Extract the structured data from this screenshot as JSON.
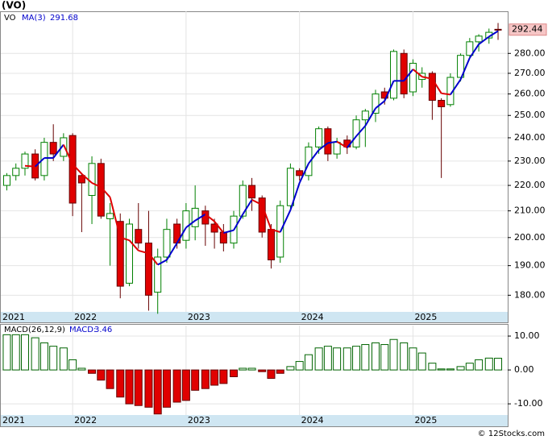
{
  "chart_data": [
    {
      "type": "candlestick",
      "title": "(VO)",
      "name": "VO",
      "log_scale": true,
      "grid": true,
      "up_color": "#008000",
      "down_color": "#e00000",
      "x": [
        2021.42,
        2021.5,
        2021.58,
        2021.67,
        2021.75,
        2021.83,
        2021.92,
        2022.0,
        2022.08,
        2022.17,
        2022.25,
        2022.33,
        2022.42,
        2022.5,
        2022.58,
        2022.67,
        2022.75,
        2022.83,
        2022.92,
        2023.0,
        2023.08,
        2023.17,
        2023.25,
        2023.33,
        2023.42,
        2023.5,
        2023.58,
        2023.67,
        2023.75,
        2023.83,
        2023.92,
        2024.0,
        2024.08,
        2024.17,
        2024.25,
        2024.33,
        2024.42,
        2024.5,
        2024.58,
        2024.67,
        2024.75,
        2024.83,
        2024.92,
        2025.0,
        2025.08,
        2025.17,
        2025.25,
        2025.33,
        2025.42,
        2025.5,
        2025.58,
        2025.67,
        2025.75
      ],
      "open": [
        220,
        224,
        227,
        233,
        224,
        238,
        232,
        241,
        224,
        216,
        229,
        207,
        206,
        184,
        203,
        198,
        181,
        193,
        205,
        199,
        204,
        210,
        205,
        202,
        198,
        208,
        220,
        215,
        203,
        193,
        212,
        226,
        224,
        236,
        244,
        233,
        239,
        236,
        248,
        251,
        261,
        258,
        280,
        261,
        267,
        270,
        257,
        255,
        268,
        279,
        286,
        288,
        292.6
      ],
      "high": [
        225,
        229,
        234,
        235,
        240,
        246,
        242,
        242,
        225,
        232,
        231,
        213,
        209,
        207,
        213,
        210,
        196,
        207,
        207,
        213,
        220,
        212,
        207,
        205,
        210,
        222,
        223,
        216,
        205,
        214,
        229,
        227,
        238,
        245,
        245,
        240,
        241,
        250,
        253,
        262,
        263,
        282,
        282,
        277,
        273,
        271,
        258,
        270,
        280,
        288,
        290,
        293,
        296
      ],
      "low": [
        218,
        222,
        224,
        222,
        222,
        230,
        230,
        208,
        202,
        205,
        207,
        190,
        179,
        183,
        196,
        175,
        174,
        191,
        196,
        196,
        199,
        197,
        196,
        195,
        196,
        207,
        210,
        200,
        189,
        191,
        211,
        222,
        222,
        233,
        230,
        231,
        233,
        235,
        236,
        247,
        255,
        257,
        258,
        259,
        263,
        248,
        223,
        254,
        266,
        278,
        281,
        285,
        287
      ],
      "close": [
        224,
        227,
        233,
        223,
        238,
        233,
        240,
        213,
        221,
        229,
        208,
        209,
        183,
        205,
        198,
        180,
        193,
        203,
        198,
        210,
        211,
        205,
        202,
        198,
        208,
        220,
        215,
        202,
        192,
        212,
        227,
        224,
        236,
        244,
        233,
        238,
        236,
        248,
        252,
        260,
        258,
        281,
        260,
        275,
        270,
        257,
        254,
        268,
        279,
        286,
        289,
        291,
        292.44
      ],
      "ma": {
        "name": "MA(3)",
        "up_color": "#0000cc",
        "down_color": "#dd0000",
        "values": [
          null,
          null,
          228.0,
          227.7,
          231.3,
          231.3,
          237.0,
          228.7,
          224.7,
          221.0,
          219.3,
          215.3,
          200.0,
          199.0,
          195.3,
          194.3,
          190.3,
          192.0,
          198.0,
          203.7,
          206.3,
          208.7,
          206.0,
          201.7,
          202.7,
          208.7,
          214.3,
          212.3,
          203.0,
          202.0,
          210.3,
          221.0,
          229.0,
          234.7,
          237.7,
          238.3,
          235.7,
          240.7,
          245.3,
          253.3,
          256.7,
          266.3,
          266.3,
          272.0,
          268.3,
          267.3,
          260.3,
          259.7,
          267.0,
          277.7,
          284.7,
          288.7,
          291.68
        ]
      },
      "xlim": [
        2021.367,
        2025.835
      ],
      "xticks": [
        2021,
        2022,
        2023,
        2024,
        2025
      ],
      "ylim": [
        171.3,
        302.4
      ],
      "yticks": [
        {
          "value": 180,
          "label": "180.00"
        },
        {
          "value": 190,
          "label": "190.00"
        },
        {
          "value": 200,
          "label": "200.00"
        },
        {
          "value": 210,
          "label": "210.00"
        },
        {
          "value": 220,
          "label": "220.00"
        },
        {
          "value": 230,
          "label": "230.00"
        },
        {
          "value": 240,
          "label": "240.00"
        },
        {
          "value": 250,
          "label": "250.00"
        },
        {
          "value": 260,
          "label": "260.00"
        },
        {
          "value": 270,
          "label": "270.00"
        },
        {
          "value": 280,
          "label": "280.00"
        }
      ]
    },
    {
      "type": "bar",
      "title": "MACD(26,12,9)",
      "name": "MACD:",
      "up_color": "#006400",
      "down_color": "#e00000",
      "values": [
        10.4,
        10.4,
        10.4,
        9.5,
        8,
        7,
        6.5,
        3,
        0.5,
        -1,
        -3,
        -5.5,
        -8,
        -10,
        -10.5,
        -11,
        -13,
        -11,
        -9.5,
        -9,
        -6,
        -5.5,
        -4.5,
        -4,
        -2,
        0.5,
        0.5,
        -0.5,
        -2.5,
        -1,
        1,
        2.5,
        4.5,
        6.5,
        7,
        6.5,
        6.5,
        7,
        7.5,
        8,
        7.5,
        9,
        8,
        6.5,
        5,
        2,
        0.3,
        0.3,
        1,
        2,
        3,
        3.5,
        3.46
      ],
      "ylim": [
        -13.3,
        13.1
      ],
      "yticks": [
        {
          "value": 10,
          "label": "10.00"
        },
        {
          "value": 0,
          "label": "0.00"
        },
        {
          "value": -10,
          "label": "-10.00"
        }
      ]
    }
  ],
  "footer": "© 12Stocks.com"
}
